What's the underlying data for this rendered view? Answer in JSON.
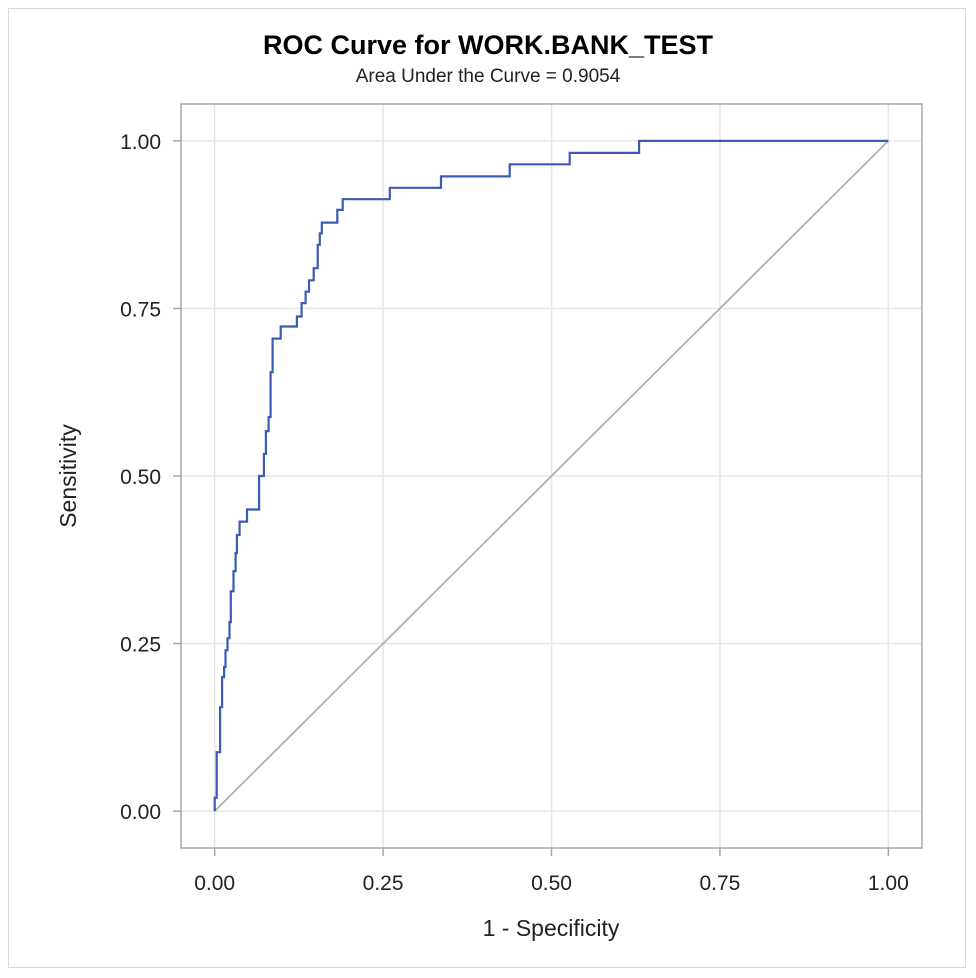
{
  "chart_data": {
    "type": "line",
    "title": "ROC Curve for WORK.BANK_TEST",
    "subtitle": "Area Under the Curve = 0.9054",
    "xlabel": "1 - Specificity",
    "ylabel": "Sensitivity",
    "xlim": [
      -0.05,
      1.05
    ],
    "ylim": [
      -0.055,
      1.055
    ],
    "xticks": [
      0,
      0.25,
      0.5,
      0.75,
      1
    ],
    "xtick_labels": [
      "0.00",
      "0.25",
      "0.50",
      "0.75",
      "1.00"
    ],
    "yticks": [
      0,
      0.25,
      0.5,
      0.75,
      1
    ],
    "ytick_labels": [
      "0.00",
      "0.25",
      "0.50",
      "0.75",
      "1.00"
    ],
    "grid": true,
    "colors": {
      "roc": "#3b5bb5",
      "diagonal": "#b0b0b0",
      "grid": "#e6e6e6",
      "axis": "#a8a8a8"
    },
    "series": [
      {
        "values": [
          [
            0.0,
            0.0
          ],
          [
            0.0,
            0.02
          ],
          [
            0.003,
            0.02
          ],
          [
            0.003,
            0.088
          ],
          [
            0.008,
            0.088
          ],
          [
            0.008,
            0.155
          ],
          [
            0.011,
            0.155
          ],
          [
            0.011,
            0.2
          ],
          [
            0.014,
            0.2
          ],
          [
            0.014,
            0.215
          ],
          [
            0.016,
            0.215
          ],
          [
            0.016,
            0.24
          ],
          [
            0.019,
            0.24
          ],
          [
            0.019,
            0.258
          ],
          [
            0.022,
            0.258
          ],
          [
            0.022,
            0.282
          ],
          [
            0.024,
            0.282
          ],
          [
            0.024,
            0.328
          ],
          [
            0.028,
            0.328
          ],
          [
            0.028,
            0.358
          ],
          [
            0.031,
            0.358
          ],
          [
            0.031,
            0.385
          ],
          [
            0.033,
            0.385
          ],
          [
            0.033,
            0.412
          ],
          [
            0.037,
            0.412
          ],
          [
            0.037,
            0.432
          ],
          [
            0.048,
            0.432
          ],
          [
            0.048,
            0.45
          ],
          [
            0.066,
            0.45
          ],
          [
            0.066,
            0.5
          ],
          [
            0.073,
            0.5
          ],
          [
            0.073,
            0.533
          ],
          [
            0.076,
            0.533
          ],
          [
            0.076,
            0.567
          ],
          [
            0.08,
            0.567
          ],
          [
            0.08,
            0.588
          ],
          [
            0.083,
            0.588
          ],
          [
            0.083,
            0.655
          ],
          [
            0.086,
            0.655
          ],
          [
            0.086,
            0.705
          ],
          [
            0.098,
            0.705
          ],
          [
            0.098,
            0.723
          ],
          [
            0.122,
            0.723
          ],
          [
            0.122,
            0.738
          ],
          [
            0.129,
            0.738
          ],
          [
            0.129,
            0.758
          ],
          [
            0.135,
            0.758
          ],
          [
            0.135,
            0.775
          ],
          [
            0.14,
            0.775
          ],
          [
            0.14,
            0.792
          ],
          [
            0.147,
            0.792
          ],
          [
            0.147,
            0.81
          ],
          [
            0.153,
            0.81
          ],
          [
            0.153,
            0.845
          ],
          [
            0.156,
            0.845
          ],
          [
            0.156,
            0.862
          ],
          [
            0.159,
            0.862
          ],
          [
            0.159,
            0.878
          ],
          [
            0.182,
            0.878
          ],
          [
            0.182,
            0.897
          ],
          [
            0.19,
            0.897
          ],
          [
            0.19,
            0.913
          ],
          [
            0.26,
            0.913
          ],
          [
            0.26,
            0.93
          ],
          [
            0.336,
            0.93
          ],
          [
            0.336,
            0.947
          ],
          [
            0.438,
            0.947
          ],
          [
            0.438,
            0.965
          ],
          [
            0.527,
            0.965
          ],
          [
            0.527,
            0.982
          ],
          [
            0.63,
            0.982
          ],
          [
            0.63,
            1.0
          ],
          [
            1.0,
            1.0
          ]
        ]
      }
    ],
    "reference_line": [
      [
        0,
        0
      ],
      [
        1,
        1
      ]
    ]
  }
}
